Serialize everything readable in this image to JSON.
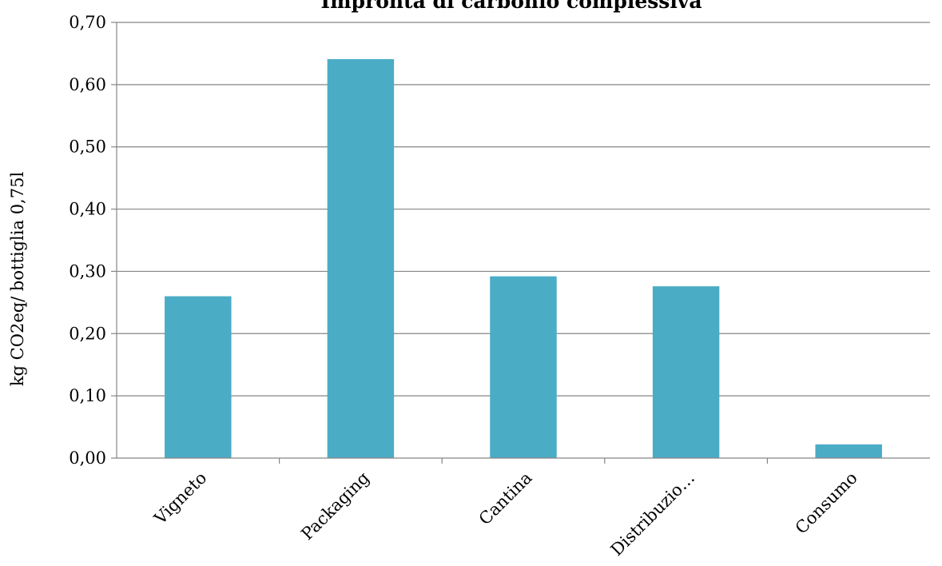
{
  "chart_data": {
    "type": "bar",
    "title": "Impronta di carbonio complessiva",
    "xlabel": "",
    "ylabel": "kg CO2eq/ bottiglia 0,75l",
    "categories": [
      "Vigneto",
      "Packaging",
      "Cantina",
      "Distribuzio…",
      "Consumo"
    ],
    "values": [
      0.26,
      0.641,
      0.292,
      0.276,
      0.022
    ],
    "ylim": [
      0,
      0.7
    ],
    "yticks": [
      0,
      0.1,
      0.2,
      0.3,
      0.4,
      0.5,
      0.6,
      0.7
    ],
    "ytick_labels": [
      "0,00",
      "0,10",
      "0,20",
      "0,30",
      "0,40",
      "0,50",
      "0,60",
      "0,70"
    ],
    "grid": true,
    "legend": "none",
    "bar_color": "#4bacc6",
    "gridline_color": "#868686"
  }
}
